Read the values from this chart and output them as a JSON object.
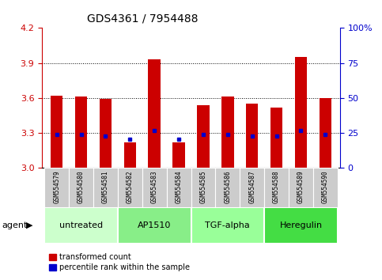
{
  "title": "GDS4361 / 7954488",
  "samples": [
    "GSM554579",
    "GSM554580",
    "GSM554581",
    "GSM554582",
    "GSM554583",
    "GSM554584",
    "GSM554585",
    "GSM554586",
    "GSM554587",
    "GSM554588",
    "GSM554589",
    "GSM554590"
  ],
  "red_values": [
    3.62,
    3.61,
    3.59,
    3.22,
    3.93,
    3.22,
    3.54,
    3.61,
    3.55,
    3.52,
    3.95,
    3.6
  ],
  "blue_values": [
    3.285,
    3.285,
    3.275,
    3.245,
    3.32,
    3.245,
    3.285,
    3.285,
    3.275,
    3.275,
    3.32,
    3.285
  ],
  "ymin": 3.0,
  "ymax": 4.2,
  "yticks_left": [
    3.0,
    3.3,
    3.6,
    3.9,
    4.2
  ],
  "yticks_right": [
    0,
    25,
    50,
    75,
    100
  ],
  "y_right_labels": [
    "0",
    "25",
    "50",
    "75",
    "100%"
  ],
  "grid_lines": [
    3.3,
    3.6,
    3.9
  ],
  "agent_groups": [
    {
      "label": "untreated",
      "indices": [
        0,
        1,
        2
      ],
      "color": "#ccffcc"
    },
    {
      "label": "AP1510",
      "indices": [
        3,
        4,
        5
      ],
      "color": "#88ee88"
    },
    {
      "label": "TGF-alpha",
      "indices": [
        6,
        7,
        8
      ],
      "color": "#99ff99"
    },
    {
      "label": "Heregulin",
      "indices": [
        9,
        10,
        11
      ],
      "color": "#44dd44"
    }
  ],
  "bar_color": "#cc0000",
  "blue_color": "#0000cc",
  "bar_width": 0.5,
  "bar_bottom": 3.0,
  "tick_color_left": "#cc0000",
  "tick_color_right": "#0000cc",
  "gray_box_color": "#cccccc",
  "label_fontsize": 5.5,
  "agent_fontsize": 8,
  "title_fontsize": 10
}
